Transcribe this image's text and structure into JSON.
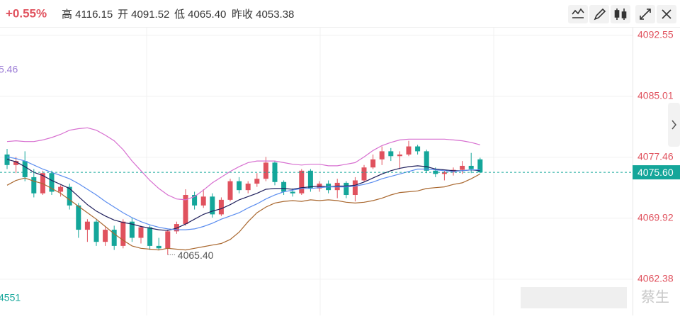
{
  "header": {
    "change": "+0.55%",
    "high": "高 4116.15",
    "open": "开 4091.52",
    "low": "低 4065.40",
    "prev_close": "昨收 4053.38"
  },
  "chart_data": {
    "type": "candlestick",
    "up_color": "#e0525e",
    "down_color": "#14a69a",
    "open": [
      4077.8,
      4076.5,
      4077.0,
      4075.0,
      4073.0,
      4075.5,
      4073.2,
      4073.8,
      4071.5,
      4068.5,
      4069.5,
      4067.0,
      4068.5,
      4066.5,
      4069.5,
      4067.5,
      4068.8,
      4066.5,
      4066.2,
      4068.3,
      4069.2,
      4072.8,
      4071.5,
      4072.6,
      4070.4,
      4072.2,
      4074.5,
      4073.4,
      4074.2,
      4074.8,
      4076.8,
      4074.4,
      4073.2,
      4073.0,
      4075.8,
      4073.6,
      4074.2,
      4073.4,
      4074.3,
      4072.8,
      4074.6,
      4076.2,
      4077.2,
      4078.2,
      4077.6,
      4077.8,
      4078.8,
      4078.2,
      4075.8,
      4075.4,
      4075.6,
      4075.9,
      4076.4,
      4077.2
    ],
    "high": [
      4078.5,
      4077.5,
      4078.2,
      4076.0,
      4075.8,
      4075.8,
      4074.0,
      4074.2,
      4071.8,
      4069.8,
      4069.8,
      4068.8,
      4069.0,
      4069.8,
      4070.0,
      4069.0,
      4069.0,
      4067.5,
      4068.5,
      4069.5,
      4073.5,
      4073.2,
      4073.5,
      4073.0,
      4072.5,
      4074.8,
      4075.0,
      4074.5,
      4075.5,
      4077.5,
      4077.0,
      4074.6,
      4073.6,
      4076.0,
      4076.0,
      4074.5,
      4074.6,
      4074.8,
      4074.5,
      4075.0,
      4076.5,
      4077.8,
      4078.8,
      4078.6,
      4078.2,
      4079.5,
      4079.0,
      4078.4,
      4076.2,
      4075.8,
      4076.2,
      4077.0,
      4078.0,
      4077.4
    ],
    "low": [
      4076.0,
      4075.5,
      4074.5,
      4072.5,
      4072.8,
      4072.8,
      4072.6,
      4071.0,
      4067.5,
      4067.0,
      4066.5,
      4066.5,
      4066.0,
      4066.2,
      4067.0,
      4066.8,
      4066.0,
      4066.0,
      4065.4,
      4068.0,
      4069.0,
      4071.0,
      4071.2,
      4070.0,
      4070.2,
      4072.0,
      4073.0,
      4073.0,
      4073.8,
      4074.5,
      4074.0,
      4072.8,
      4072.6,
      4072.8,
      4073.2,
      4073.2,
      4073.0,
      4072.4,
      4072.4,
      4072.0,
      4074.4,
      4076.0,
      4076.5,
      4077.0,
      4076.0,
      4077.6,
      4077.8,
      4075.5,
      4075.0,
      4074.6,
      4075.2,
      4075.4,
      4075.5,
      4075.5
    ],
    "close": [
      4076.5,
      4077.0,
      4075.0,
      4073.0,
      4075.5,
      4073.2,
      4073.8,
      4071.5,
      4068.5,
      4069.5,
      4067.0,
      4068.5,
      4066.5,
      4069.5,
      4067.5,
      4068.8,
      4066.5,
      4066.2,
      4068.3,
      4069.2,
      4072.8,
      4071.5,
      4072.6,
      4070.4,
      4072.2,
      4074.5,
      4073.4,
      4074.2,
      4074.8,
      4076.8,
      4074.4,
      4073.2,
      4073.0,
      4075.8,
      4073.6,
      4074.2,
      4073.4,
      4074.3,
      4072.8,
      4074.6,
      4076.2,
      4077.2,
      4078.2,
      4077.6,
      4077.8,
      4078.8,
      4078.2,
      4075.8,
      4075.4,
      4075.6,
      4075.9,
      4076.4,
      4076.0,
      4075.6
    ],
    "series": [
      {
        "color": "#1f1f5c",
        "values": [
          4077.2,
          4076.9,
          4076.3,
          4075.6,
          4075.2,
          4074.6,
          4074.1,
          4073.6,
          4072.6,
          4071.6,
          4070.8,
          4070.2,
          4069.7,
          4069.4,
          4069.2,
          4068.9,
          4068.7,
          4068.5,
          4068.4,
          4068.7,
          4069.2,
          4069.8,
          4070.4,
          4070.8,
          4071.1,
          4071.6,
          4072.2,
          4072.6,
          4073.0,
          4073.5,
          4073.6,
          4073.6,
          4073.5,
          4073.7,
          4073.8,
          4073.9,
          4073.8,
          4073.9,
          4073.9,
          4074.0,
          4074.4,
          4074.9,
          4075.4,
          4075.8,
          4076.1,
          4076.3,
          4076.4,
          4076.3,
          4076.0,
          4075.9,
          4075.8,
          4075.8,
          4075.9,
          4075.8
        ]
      },
      {
        "color": "#5b8def",
        "values": [
          4077.5,
          4077.3,
          4077.0,
          4076.5,
          4076.0,
          4075.6,
          4075.2,
          4074.8,
          4074.2,
          4073.5,
          4072.8,
          4072.0,
          4071.3,
          4070.6,
          4070.0,
          4069.5,
          4069.1,
          4068.8,
          4068.6,
          4068.5,
          4068.5,
          4068.6,
          4068.9,
          4069.3,
          4069.8,
          4070.2,
          4070.6,
          4071.2,
          4071.7,
          4072.3,
          4072.8,
          4073.2,
          4073.4,
          4073.6,
          4073.6,
          4073.7,
          4073.8,
          4073.8,
          4073.8,
          4073.9,
          4074.1,
          4074.4,
          4074.8,
          4075.1,
          4075.4,
          4075.7,
          4076.0,
          4076.0,
          4075.9,
          4075.8,
          4075.7,
          4075.8,
          4075.9,
          4075.9
        ]
      },
      {
        "color": "#d76fd0",
        "values": [
          4079.4,
          4079.5,
          4079.4,
          4079.4,
          4079.6,
          4079.9,
          4080.3,
          4080.8,
          4081.0,
          4081.1,
          4080.8,
          4080.2,
          4079.5,
          4078.4,
          4077.0,
          4075.8,
          4074.6,
          4073.6,
          4072.8,
          4072.3,
          4072.2,
          4072.6,
          4073.4,
          4074.3,
          4075.0,
          4075.7,
          4076.3,
          4076.8,
          4077.0,
          4077.0,
          4077.0,
          4076.8,
          4076.6,
          4076.5,
          4076.6,
          4076.6,
          4076.4,
          4076.4,
          4076.6,
          4076.8,
          4077.5,
          4078.3,
          4078.9,
          4079.3,
          4079.6,
          4079.7,
          4079.7,
          4079.7,
          4079.7,
          4079.7,
          4079.6,
          4079.5,
          4079.3,
          4079.0
        ]
      },
      {
        "color": "#a9672e",
        "values": [
          4074.0,
          4074.6,
          4074.9,
          4074.5,
          4074.2,
          4073.6,
          4073.0,
          4072.2,
          4071.4,
          4070.6,
          4069.8,
          4068.9,
          4068.0,
          4067.2,
          4066.5,
          4066.2,
          4066.1,
          4066.0,
          4066.2,
          4066.1,
          4066.0,
          4066.2,
          4066.4,
          4066.6,
          4066.8,
          4067.3,
          4068.2,
          4069.5,
          4070.6,
          4071.3,
          4071.8,
          4072.0,
          4072.1,
          4072.0,
          4072.2,
          4072.1,
          4072.2,
          4072.1,
          4071.9,
          4071.8,
          4071.9,
          4072.1,
          4072.4,
          4072.8,
          4073.1,
          4073.2,
          4073.3,
          4073.6,
          4073.7,
          4073.8,
          4074.1,
          4074.3,
          4074.8,
          4075.4
        ]
      }
    ],
    "ylim": [
      4057.9,
      4093.4
    ],
    "yticks": [
      4092.55,
      4085.01,
      4077.46,
      4069.92,
      4062.38
    ],
    "current_price": {
      "value": 4075.6,
      "label": "4075.60"
    },
    "low_marker": {
      "value": 4065.4,
      "label": "4065.40"
    },
    "annotations": [
      "5.46",
      "4551"
    ],
    "watermark": "蔡生"
  }
}
